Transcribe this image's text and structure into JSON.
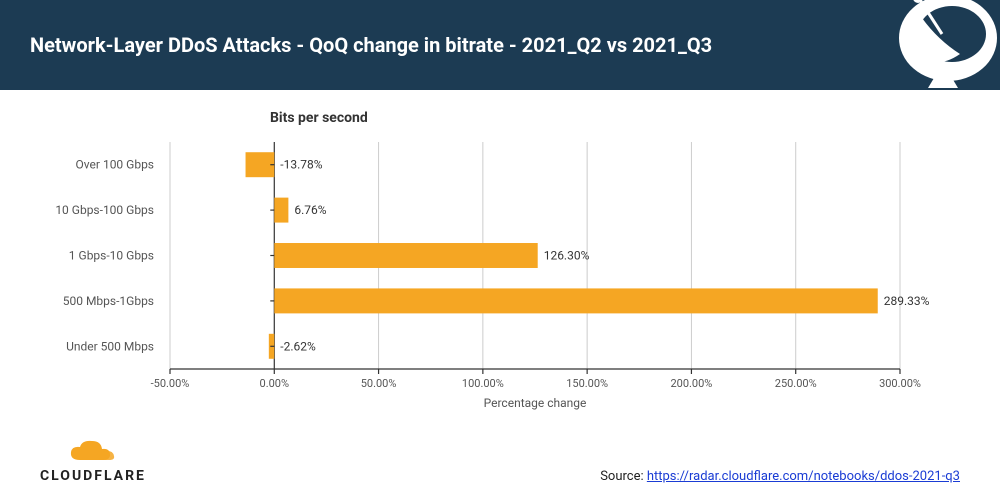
{
  "header": {
    "title": "Network-Layer DDoS Attacks - QoQ change in bitrate - 2021_Q2 vs 2021_Q3",
    "bg_color": "#1c3b53",
    "text_color": "#ffffff",
    "icon_color": "#ffffff",
    "title_fontsize": 20
  },
  "chart": {
    "type": "bar-horizontal",
    "title": "Bits per second",
    "title_fontsize": 14,
    "categories": [
      "Over 100 Gbps",
      "10 Gbps-100 Gbps",
      "1 Gbps-10 Gbps",
      "500 Mbps-1Gbps",
      "Under 500 Mbps"
    ],
    "values": [
      -13.78,
      6.76,
      126.3,
      289.33,
      -2.62
    ],
    "value_labels": [
      "-13.78%",
      "6.76%",
      "126.30%",
      "289.33%",
      "-2.62%"
    ],
    "bar_color": "#f5a623",
    "xlabel": "Percentage change",
    "xlim": [
      -50,
      300
    ],
    "xtick_step": 50,
    "xtick_labels": [
      "-50.00%",
      "0.00%",
      "50.00%",
      "100.00%",
      "150.00%",
      "200.00%",
      "250.00%",
      "300.00%"
    ],
    "label_fontsize": 12,
    "axis_color": "#333333",
    "grid_color": "#cccccc",
    "background_color": "#ffffff",
    "bar_height_ratio": 0.55
  },
  "footer": {
    "logo_text": "CLOUDFLARE",
    "logo_color": "#f5a623",
    "source_prefix": "Source: ",
    "source_url_text": "https://radar.cloudflare.com/notebooks/ddos-2021-q3",
    "source_url_href": "https://radar.cloudflare.com/notebooks/ddos-2021-q3"
  }
}
